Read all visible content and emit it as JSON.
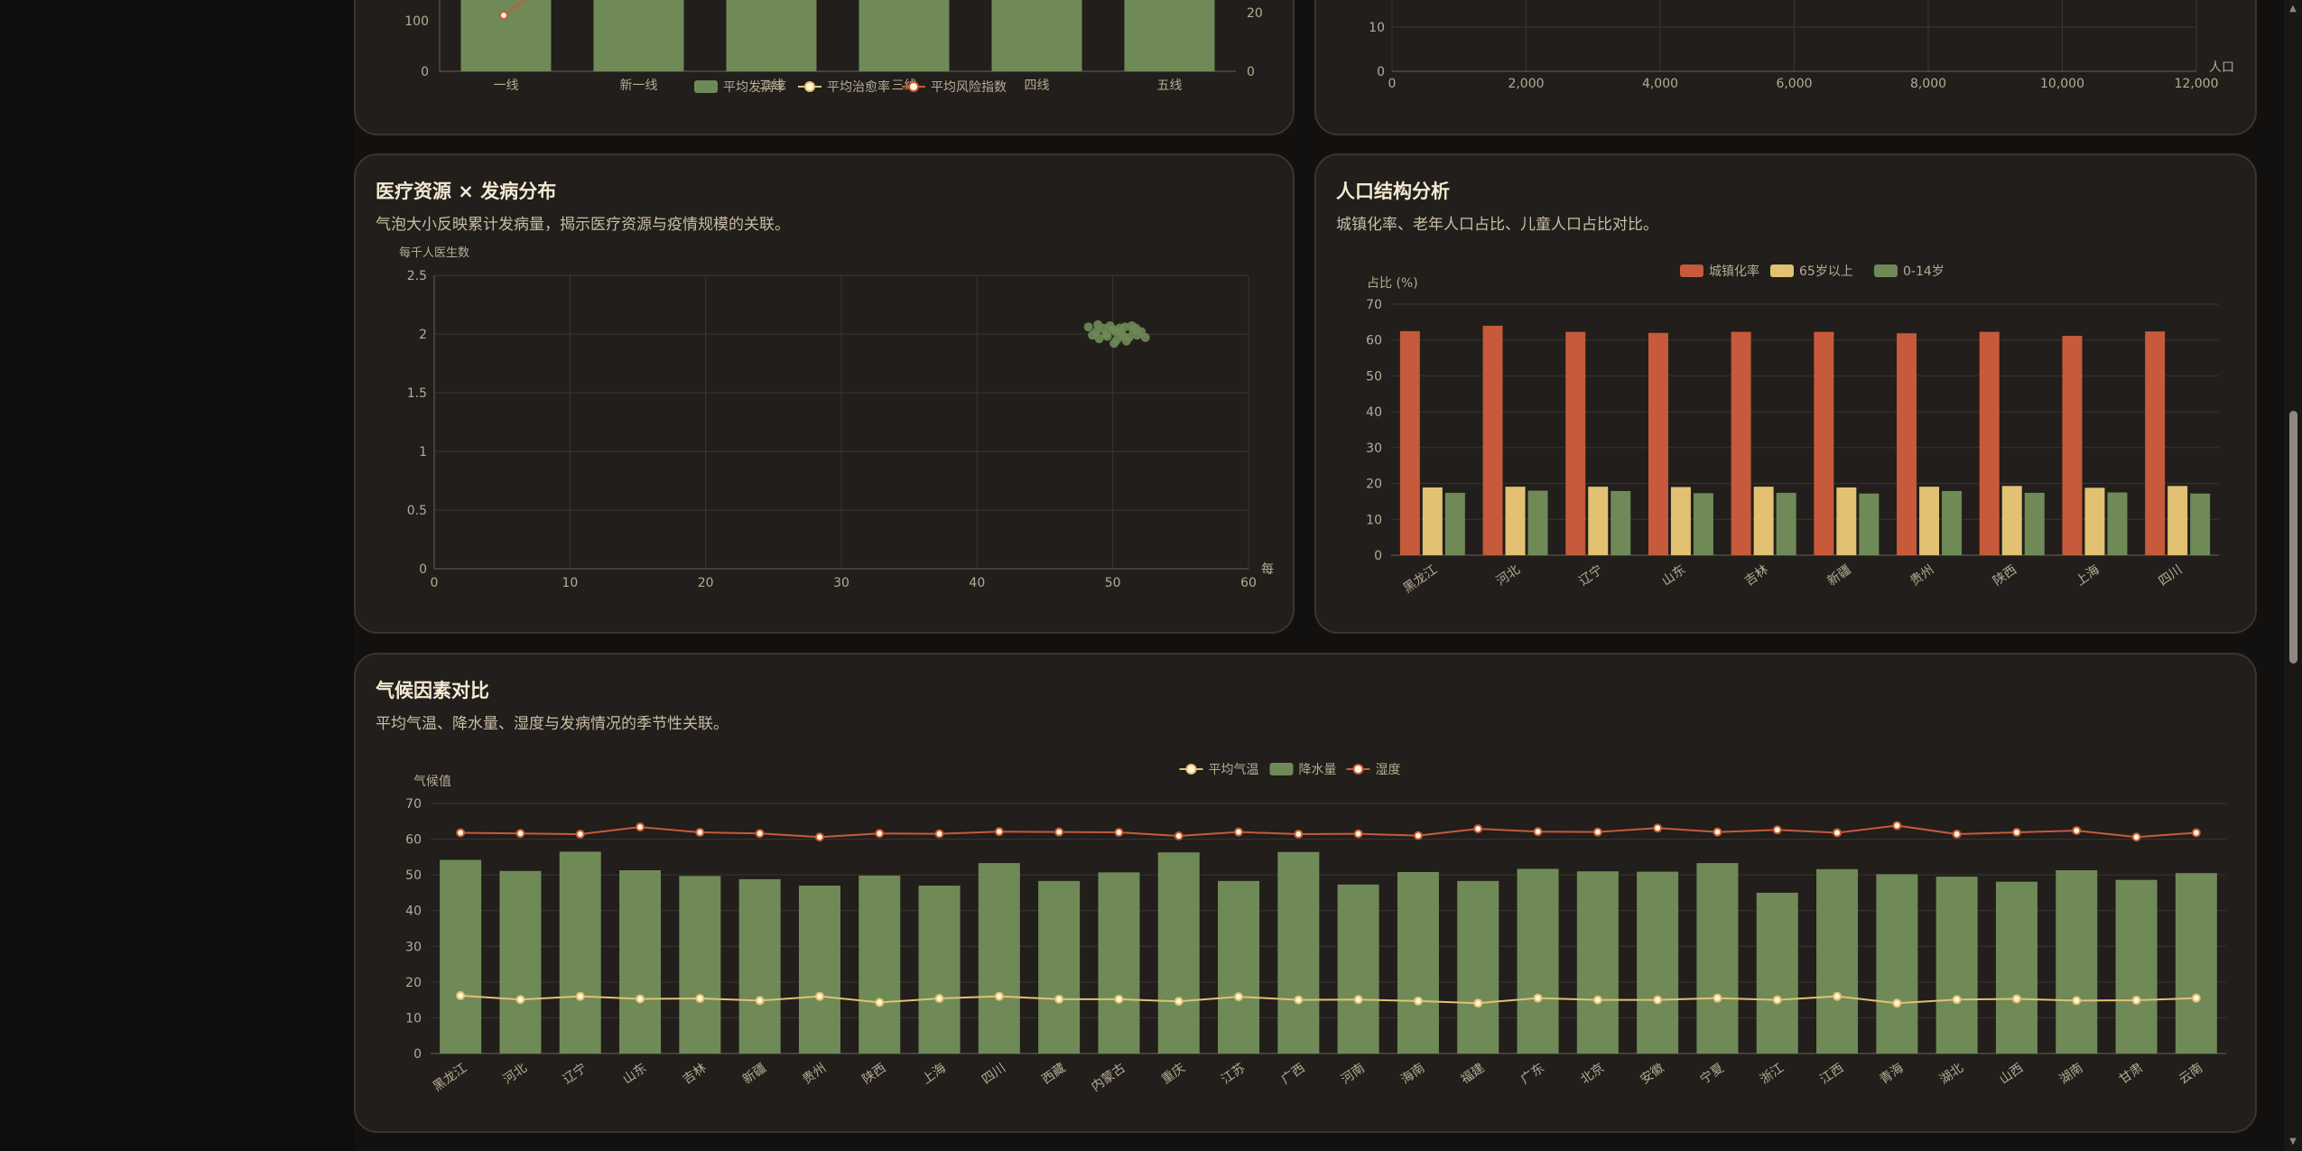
{
  "panels": {
    "top_left": {
      "title": "",
      "subtitle": ""
    },
    "top_right": {
      "title": "",
      "subtitle": ""
    },
    "medical": {
      "title": "医疗资源 × 发病分布",
      "subtitle": "气泡大小反映累计发病量，揭示医疗资源与疫情规模的关联。"
    },
    "population": {
      "title": "人口结构分析",
      "subtitle": "城镇化率、老年人口占比、儿童人口占比对比。"
    },
    "climate": {
      "title": "气候因素对比",
      "subtitle": "平均气温、降水量、湿度与发病情况的季节性关联。"
    }
  },
  "colors": {
    "green": "#6f8a57",
    "orange": "#c65a3a",
    "gold": "#e2c172",
    "gridline": "#3a3631",
    "axis_text": "#b7ab94"
  },
  "chart_data": [
    {
      "id": "city-tier",
      "type": "bar",
      "categories": [
        "一线",
        "新一线",
        "二线",
        "三线",
        "四线",
        "五线"
      ],
      "series": [
        {
          "name": "平均发病率",
          "kind": "bar"
        },
        {
          "name": "平均治愈率",
          "kind": "line"
        },
        {
          "name": "平均风险指数",
          "kind": "line"
        }
      ],
      "left_ticks": [
        "0",
        "100"
      ],
      "right_ticks": [
        "0",
        "20"
      ],
      "legend": "bottom-center"
    },
    {
      "id": "population-scatter",
      "type": "scatter",
      "x_ticks": [
        "0",
        "2,000",
        "4,000",
        "6,000",
        "8,000",
        "10,000",
        "12,000"
      ],
      "y_ticks": [
        "0",
        "10"
      ],
      "xlabel": "人口",
      "xlim": [
        0,
        12000
      ]
    },
    {
      "id": "medical-bubble",
      "type": "scatter",
      "ylabel": "每千人医生数",
      "xlabel": "每",
      "xlim": [
        0,
        60
      ],
      "ylim": [
        0,
        2.5
      ],
      "x_ticks": [
        "0",
        "10",
        "20",
        "30",
        "40",
        "50",
        "60"
      ],
      "y_ticks": [
        "0",
        "0.5",
        "1",
        "1.5",
        "2",
        "2.5"
      ],
      "points": [
        [
          48.2,
          2.06
        ],
        [
          48.8,
          2.02
        ],
        [
          49.3,
          2.05
        ],
        [
          49.6,
          1.98
        ],
        [
          50.0,
          2.04
        ],
        [
          50.3,
          1.95
        ],
        [
          50.6,
          2.01
        ],
        [
          50.9,
          2.06
        ],
        [
          51.2,
          1.97
        ],
        [
          51.5,
          2.03
        ],
        [
          51.8,
          1.99
        ],
        [
          52.1,
          2.02
        ],
        [
          49.0,
          1.96
        ],
        [
          49.8,
          2.07
        ],
        [
          50.1,
          1.92
        ],
        [
          50.5,
          2.05
        ],
        [
          51.0,
          1.94
        ],
        [
          51.4,
          2.07
        ],
        [
          52.4,
          1.97
        ],
        [
          48.5,
          1.99
        ],
        [
          49.5,
          2.0
        ],
        [
          50.8,
          1.98
        ],
        [
          51.7,
          2.05
        ],
        [
          50.2,
          2.02
        ],
        [
          48.9,
          2.08
        ]
      ]
    },
    {
      "id": "population-structure",
      "type": "bar",
      "ylabel": "占比 (%)",
      "ylim": [
        0,
        70
      ],
      "y_ticks": [
        "0",
        "10",
        "20",
        "30",
        "40",
        "50",
        "60",
        "70"
      ],
      "legend": "top-center",
      "categories": [
        "黑龙江",
        "河北",
        "辽宁",
        "山东",
        "吉林",
        "新疆",
        "贵州",
        "陕西",
        "上海",
        "四川"
      ],
      "series": [
        {
          "name": "城镇化率",
          "values": [
            62.5,
            64,
            62.3,
            62,
            62.3,
            62.3,
            61.9,
            62.3,
            61.2,
            62.4
          ]
        },
        {
          "name": "65岁以上",
          "values": [
            18.9,
            19.1,
            19.1,
            19,
            19.1,
            18.9,
            19.1,
            19.3,
            18.8,
            19.3
          ]
        },
        {
          "name": "0-14岁",
          "values": [
            17.4,
            18,
            17.9,
            17.3,
            17.4,
            17.2,
            17.9,
            17.4,
            17.5,
            17.2
          ]
        }
      ]
    },
    {
      "id": "climate",
      "type": "bar",
      "ylabel": "气候值",
      "ylim": [
        0,
        70
      ],
      "y_ticks": [
        "0",
        "10",
        "20",
        "30",
        "40",
        "50",
        "60",
        "70"
      ],
      "legend": "top-center",
      "categories": [
        "黑龙江",
        "河北",
        "辽宁",
        "山东",
        "吉林",
        "新疆",
        "贵州",
        "陕西",
        "上海",
        "四川",
        "西藏",
        "内蒙古",
        "重庆",
        "江苏",
        "广西",
        "河南",
        "海南",
        "福建",
        "广东",
        "北京",
        "安徽",
        "宁夏",
        "浙江",
        "江西",
        "青海",
        "湖北",
        "山西",
        "湖南",
        "甘肃",
        "云南"
      ],
      "series": [
        {
          "name": "平均气温",
          "kind": "line",
          "values": [
            16.2,
            15.1,
            16.0,
            15.3,
            15.4,
            14.8,
            16.0,
            14.3,
            15.4,
            16.0,
            15.2,
            15.2,
            14.6,
            15.9,
            15.0,
            15.1,
            14.7,
            14.1,
            15.5,
            15.0,
            15.0,
            15.5,
            15.0,
            16.0,
            14.1,
            15.1,
            15.3,
            14.8,
            14.9,
            15.5
          ]
        },
        {
          "name": "降水量",
          "kind": "bar",
          "values": [
            54.2,
            51.1,
            56.5,
            51.3,
            49.7,
            48.8,
            47.0,
            49.8,
            47.0,
            53.3,
            48.3,
            50.7,
            56.3,
            48.3,
            56.4,
            47.3,
            50.8,
            48.3,
            51.7,
            51.0,
            50.9,
            53.3,
            45.0,
            51.6,
            50.2,
            49.5,
            48.1,
            51.3,
            48.6,
            50.5
          ]
        },
        {
          "name": "湿度",
          "kind": "line",
          "values": [
            61.8,
            61.6,
            61.4,
            63.4,
            61.9,
            61.6,
            60.6,
            61.6,
            61.5,
            62.1,
            62.0,
            61.9,
            60.9,
            62.0,
            61.4,
            61.5,
            61.0,
            62.9,
            62.1,
            62.0,
            63.1,
            62.0,
            62.6,
            61.8,
            63.8,
            61.4,
            61.9,
            62.4,
            60.6,
            61.8
          ]
        }
      ]
    }
  ]
}
